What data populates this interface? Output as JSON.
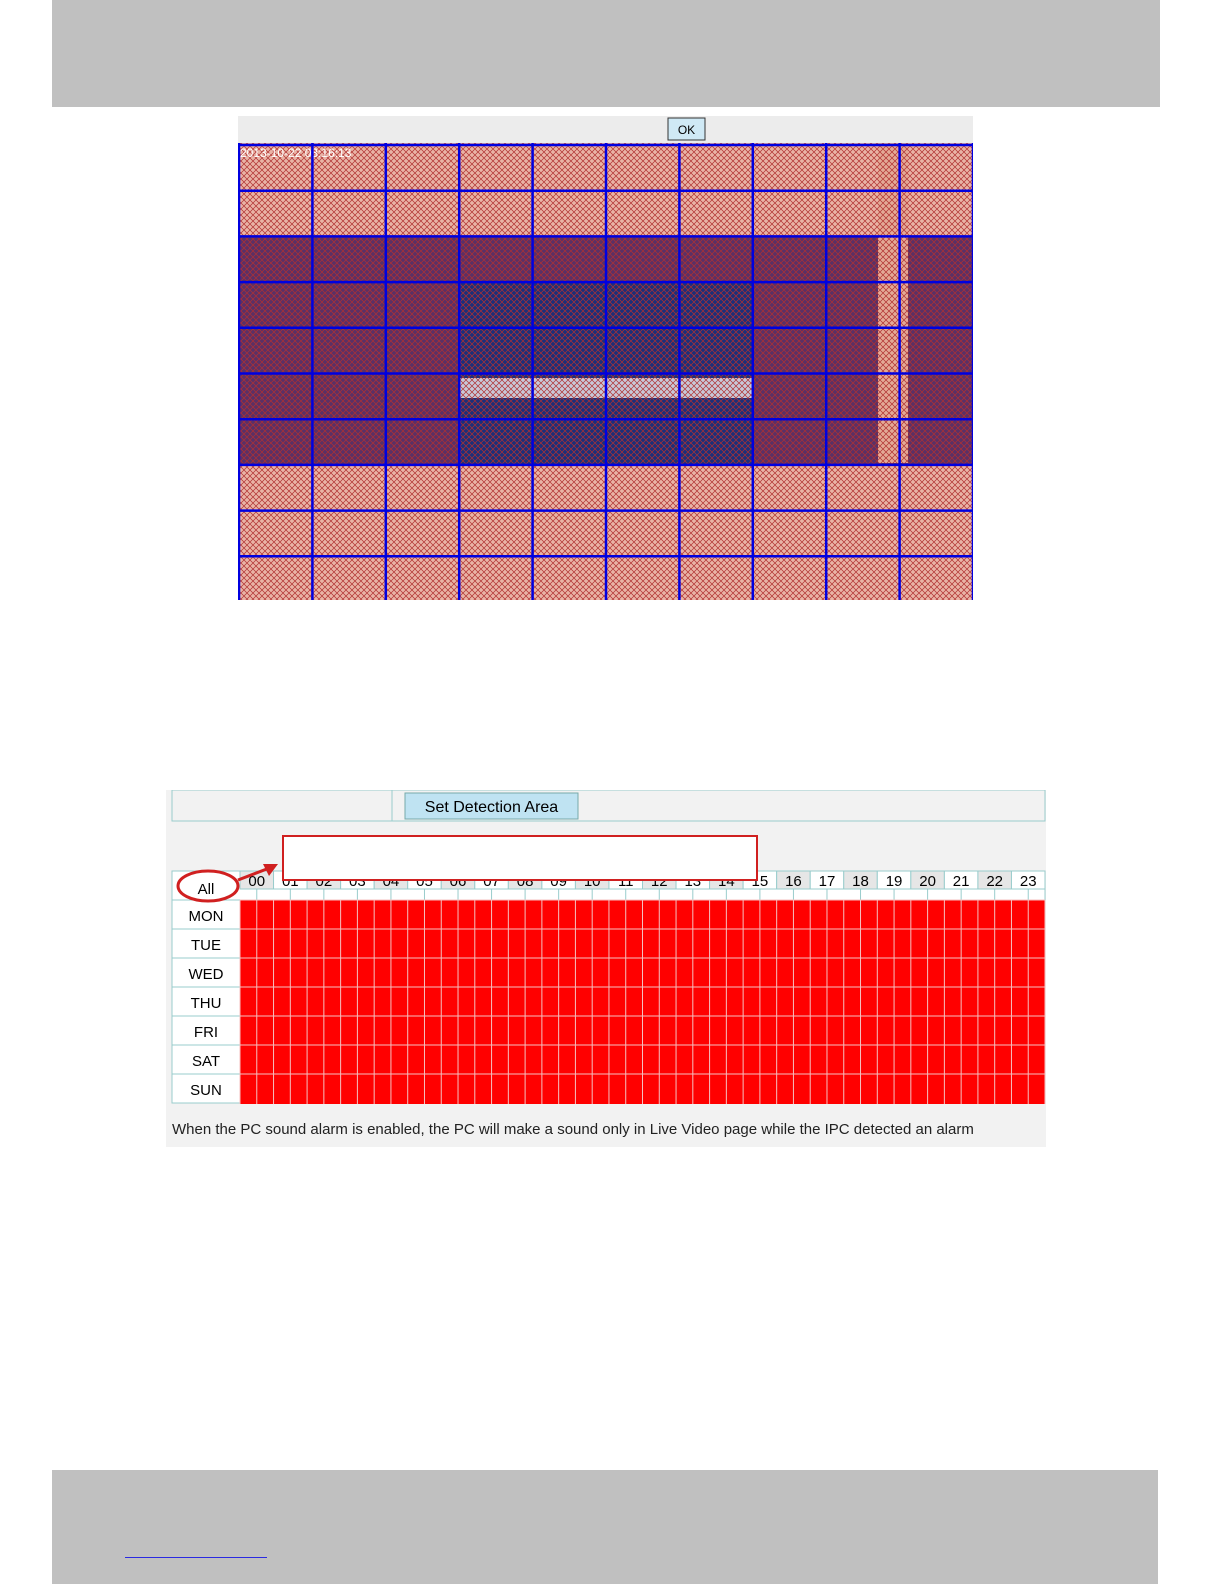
{
  "camera_view": {
    "ok_button": "OK",
    "timestamp": "2013-10-22 03:16:13"
  },
  "schedule": {
    "set_area_button": "Set Detection Area",
    "all_label": "All",
    "hours": [
      "00",
      "01",
      "02",
      "03",
      "04",
      "05",
      "06",
      "07",
      "08",
      "09",
      "10",
      "11",
      "12",
      "13",
      "14",
      "15",
      "16",
      "17",
      "18",
      "19",
      "20",
      "21",
      "22",
      "23"
    ],
    "days": [
      "MON",
      "TUE",
      "WED",
      "THU",
      "FRI",
      "SAT",
      "SUN"
    ],
    "note": "When the PC sound alarm is enabled, the PC will make a sound only in Live Video page while the IPC detected an alarm"
  }
}
